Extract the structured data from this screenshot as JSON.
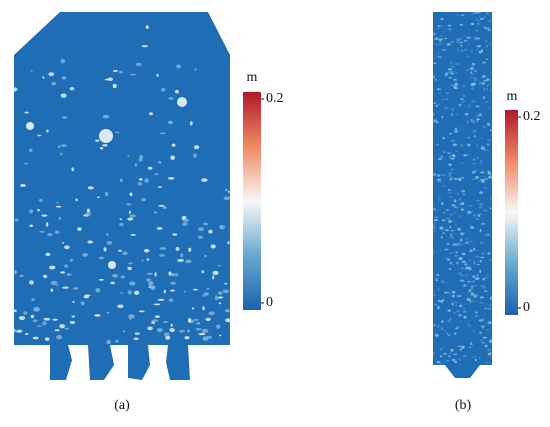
{
  "panels": [
    {
      "caption": "(a)",
      "colorbar": {
        "unit": "m",
        "ticks": [
          0.2,
          0
        ]
      }
    },
    {
      "caption": "(b)",
      "colorbar": {
        "unit": "m",
        "ticks": [
          0.2,
          0
        ]
      }
    }
  ]
}
